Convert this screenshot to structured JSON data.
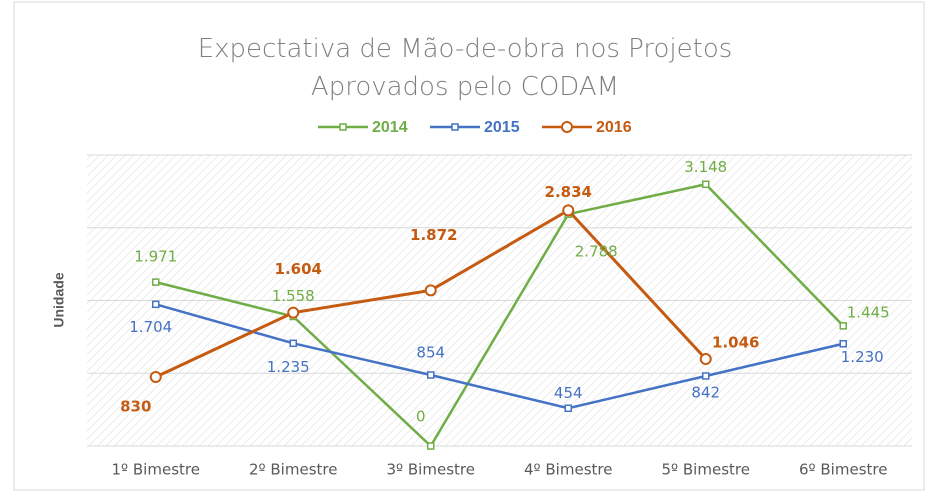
{
  "chart_data": {
    "type": "line",
    "title": "Expectativa de Mão-de-obra nos Projetos Aprovados pelo CODAM",
    "y_label": "Unidade",
    "categories": [
      "1º Bimestre",
      "2º Bimestre",
      "3º Bimestre",
      "4º Bimestre",
      "5º Bimestre",
      "6º Bimestre"
    ],
    "series": [
      {
        "name": "2014",
        "color": "#70ad47",
        "marker": "square",
        "values": [
          1971,
          1558,
          0,
          2788,
          3148,
          1445
        ],
        "value_labels": [
          "1.971",
          "1.558",
          "0",
          "2.788",
          "3.148",
          "1.445"
        ]
      },
      {
        "name": "2015",
        "color": "#4472c4",
        "marker": "square",
        "values": [
          1704,
          1235,
          854,
          454,
          842,
          1230
        ],
        "value_labels": [
          "1.704",
          "1.235",
          "854",
          "454",
          "842",
          "1.230"
        ]
      },
      {
        "name": "2016",
        "color": "#c55a11",
        "marker": "circle",
        "values": [
          830,
          1604,
          1872,
          2834,
          1046,
          null
        ],
        "value_labels": [
          "830",
          "1.604",
          "1.872",
          "2.834",
          "1.046",
          null
        ]
      }
    ],
    "ylim": [
      0,
      3500
    ],
    "yticks": [
      0,
      875,
      1750,
      2625,
      3500
    ],
    "grid": true,
    "legend": "top"
  }
}
